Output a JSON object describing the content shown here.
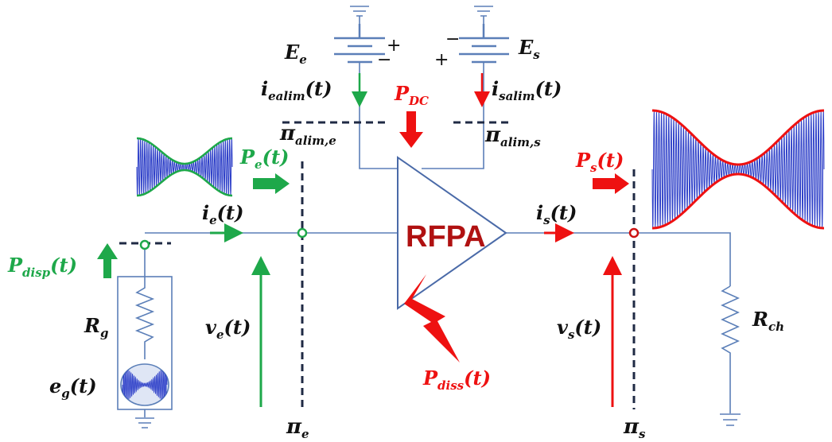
{
  "colors": {
    "wire": "#5b7fb8",
    "green": "#1ea84a",
    "red": "#ee1111",
    "dark": "#1f2a44",
    "rfpa": "#b01111",
    "waveFill": "#2c3ec8"
  },
  "amplifier": {
    "label": "RFPA"
  },
  "labels": {
    "Ee": {
      "main": "E",
      "sub": "e"
    },
    "Es": {
      "main": "E",
      "sub": "s"
    },
    "plus_e": "+",
    "minus_e": "−",
    "plus_s": "+",
    "minus_s": "−",
    "iealim": {
      "main": "i",
      "sub": "ealim",
      "tail": "(t)"
    },
    "isalim": {
      "main": "i",
      "sub": "salim",
      "tail": "(t)"
    },
    "PDC": {
      "main": "P",
      "sub": "DC"
    },
    "pi_alim_e": {
      "main": "π",
      "sub": "alim,e"
    },
    "pi_alim_s": {
      "main": "π",
      "sub": "alim,s"
    },
    "Pe": {
      "main": "P",
      "sub": "e",
      "tail": "(t)"
    },
    "Ps": {
      "main": "P",
      "sub": "s",
      "tail": "(t)"
    },
    "ie": {
      "main": "i",
      "sub": "e",
      "tail": "(t)"
    },
    "is": {
      "main": "i",
      "sub": "s",
      "tail": "(t)"
    },
    "Pdisp": {
      "main": "P",
      "sub": "disp",
      "tail": "(t)"
    },
    "Rg": {
      "main": "R",
      "sub": "g"
    },
    "eg": {
      "main": "e",
      "sub": "g",
      "tail": "(t)"
    },
    "ve": {
      "main": "v",
      "sub": "e",
      "tail": "(t)"
    },
    "vs": {
      "main": "v",
      "sub": "s",
      "tail": "(t)"
    },
    "Pdiss": {
      "main": "P",
      "sub": "diss",
      "tail": "(t)"
    },
    "Rch": {
      "main": "R",
      "sub": "ch"
    },
    "pi_e": {
      "main": "π",
      "sub": "e"
    },
    "pi_s": {
      "main": "π",
      "sub": "s"
    }
  }
}
